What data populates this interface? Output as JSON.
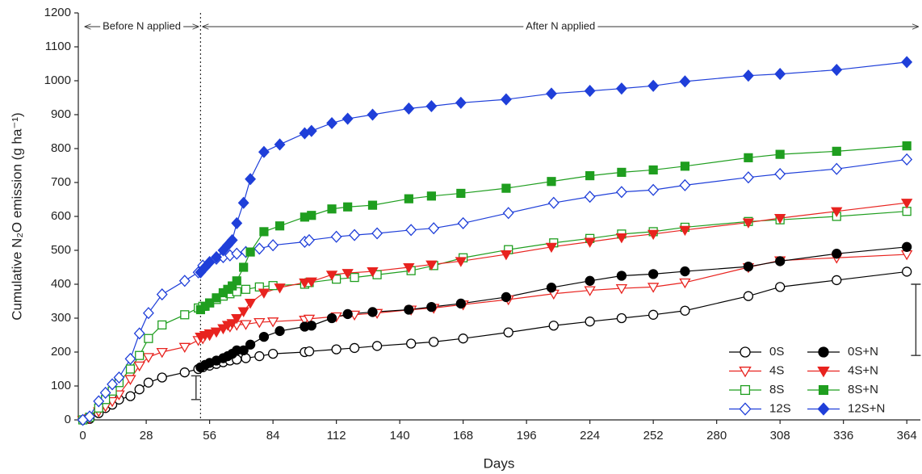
{
  "chart_data": {
    "type": "line",
    "x_label": "Days",
    "y_label": "Cumulative N₂O emission (g ha⁻¹)",
    "xlim": [
      -2,
      370
    ],
    "ylim": [
      0,
      1200
    ],
    "xticks": [
      0,
      28,
      56,
      84,
      112,
      140,
      168,
      196,
      224,
      252,
      280,
      308,
      336,
      364
    ],
    "yticks": [
      0,
      100,
      200,
      300,
      400,
      500,
      600,
      700,
      800,
      900,
      1000,
      1100,
      1200
    ],
    "vline_x": 52,
    "annotations": [
      {
        "text": "Before N applied",
        "from": 0,
        "to": 52
      },
      {
        "text": "After N applied",
        "from": 52,
        "to": 370
      }
    ],
    "error_bars": [
      {
        "x": 50,
        "low": 60,
        "high": 130
      },
      {
        "x": 368,
        "low": 190,
        "high": 400
      }
    ],
    "series": [
      {
        "name": "0S",
        "color": "#000000",
        "marker": "circle",
        "filled": false,
        "x": [
          0,
          3,
          7,
          10,
          13,
          16,
          21,
          25,
          29,
          35,
          45,
          51,
          53,
          56,
          59,
          62,
          65,
          68,
          72,
          78,
          84,
          98,
          100,
          112,
          120,
          130,
          145,
          155,
          168,
          188,
          208,
          224,
          238,
          252,
          266,
          294,
          308,
          333,
          364
        ],
        "values": [
          0,
          3,
          20,
          35,
          45,
          60,
          70,
          90,
          110,
          125,
          140,
          150,
          155,
          160,
          165,
          170,
          175,
          178,
          182,
          188,
          195,
          200,
          202,
          208,
          212,
          218,
          225,
          230,
          240,
          258,
          278,
          290,
          300,
          310,
          322,
          365,
          392,
          412,
          437
        ]
      },
      {
        "name": "4S",
        "color": "#e8231f",
        "marker": "triangle-down",
        "filled": false,
        "x": [
          0,
          3,
          7,
          10,
          13,
          16,
          21,
          25,
          29,
          35,
          45,
          51,
          53,
          56,
          59,
          62,
          65,
          68,
          72,
          78,
          84,
          98,
          100,
          112,
          120,
          130,
          145,
          155,
          168,
          188,
          208,
          224,
          238,
          252,
          266,
          294,
          308,
          333,
          364
        ],
        "values": [
          0,
          5,
          25,
          40,
          55,
          75,
          120,
          160,
          185,
          200,
          215,
          235,
          240,
          250,
          260,
          270,
          275,
          280,
          282,
          288,
          290,
          295,
          298,
          305,
          310,
          315,
          325,
          330,
          340,
          355,
          372,
          382,
          388,
          392,
          405,
          450,
          470,
          478,
          488
        ]
      },
      {
        "name": "8S",
        "color": "#1f9e1f",
        "marker": "square",
        "filled": false,
        "x": [
          0,
          3,
          7,
          10,
          13,
          16,
          21,
          25,
          29,
          35,
          45,
          51,
          53,
          56,
          59,
          62,
          65,
          68,
          72,
          78,
          84,
          98,
          100,
          112,
          120,
          130,
          145,
          155,
          168,
          188,
          208,
          224,
          238,
          252,
          266,
          294,
          308,
          333,
          364
        ],
        "values": [
          0,
          8,
          35,
          60,
          85,
          110,
          150,
          190,
          240,
          280,
          310,
          330,
          335,
          345,
          355,
          365,
          372,
          378,
          385,
          392,
          396,
          400,
          405,
          415,
          420,
          428,
          440,
          455,
          478,
          502,
          522,
          535,
          548,
          555,
          568,
          585,
          590,
          600,
          615
        ]
      },
      {
        "name": "12S",
        "color": "#1f3fd9",
        "marker": "diamond",
        "filled": false,
        "x": [
          0,
          3,
          7,
          10,
          13,
          16,
          21,
          25,
          29,
          35,
          45,
          51,
          53,
          56,
          59,
          62,
          65,
          68,
          72,
          78,
          84,
          98,
          100,
          112,
          120,
          130,
          145,
          155,
          168,
          188,
          208,
          224,
          238,
          252,
          266,
          294,
          308,
          333,
          364
        ],
        "values": [
          0,
          10,
          55,
          80,
          105,
          125,
          180,
          255,
          315,
          370,
          410,
          435,
          455,
          465,
          475,
          480,
          485,
          490,
          495,
          505,
          515,
          525,
          530,
          540,
          545,
          550,
          560,
          565,
          580,
          610,
          640,
          658,
          672,
          678,
          692,
          715,
          725,
          740,
          768
        ]
      },
      {
        "name": "0S+N",
        "color": "#000000",
        "marker": "circle",
        "filled": true,
        "x": [
          52,
          54,
          56,
          59,
          62,
          64,
          66,
          68,
          71,
          74,
          80,
          87,
          98,
          101,
          110,
          117,
          128,
          144,
          154,
          167,
          187,
          207,
          224,
          238,
          252,
          266,
          294,
          308,
          333,
          364
        ],
        "values": [
          155,
          162,
          168,
          175,
          182,
          188,
          195,
          205,
          205,
          222,
          245,
          262,
          275,
          278,
          300,
          312,
          318,
          325,
          333,
          343,
          362,
          390,
          410,
          425,
          430,
          438,
          452,
          468,
          490,
          510
        ]
      },
      {
        "name": "4S+N",
        "color": "#e8231f",
        "marker": "triangle-down",
        "filled": true,
        "x": [
          52,
          54,
          56,
          59,
          62,
          64,
          66,
          68,
          71,
          74,
          80,
          87,
          98,
          101,
          110,
          117,
          128,
          144,
          154,
          167,
          187,
          207,
          224,
          238,
          252,
          266,
          294,
          308,
          333,
          364
        ],
        "values": [
          245,
          250,
          255,
          260,
          270,
          280,
          285,
          300,
          320,
          345,
          375,
          390,
          405,
          408,
          428,
          433,
          438,
          450,
          458,
          468,
          488,
          510,
          525,
          538,
          548,
          560,
          582,
          595,
          615,
          640
        ]
      },
      {
        "name": "8S+N",
        "color": "#1f9e1f",
        "marker": "square",
        "filled": true,
        "x": [
          52,
          54,
          56,
          59,
          62,
          64,
          66,
          68,
          71,
          74,
          80,
          87,
          98,
          101,
          110,
          117,
          128,
          144,
          154,
          167,
          187,
          207,
          224,
          238,
          252,
          266,
          294,
          308,
          333,
          364
        ],
        "values": [
          325,
          335,
          345,
          360,
          375,
          385,
          395,
          410,
          450,
          495,
          555,
          572,
          598,
          603,
          622,
          628,
          633,
          652,
          660,
          668,
          683,
          703,
          720,
          730,
          737,
          748,
          773,
          783,
          792,
          808
        ]
      },
      {
        "name": "12S+N",
        "color": "#1f3fd9",
        "marker": "diamond",
        "filled": true,
        "x": [
          52,
          54,
          56,
          59,
          62,
          64,
          66,
          68,
          71,
          74,
          80,
          87,
          98,
          101,
          110,
          117,
          128,
          144,
          154,
          167,
          187,
          207,
          224,
          238,
          252,
          266,
          294,
          308,
          333,
          364
        ],
        "values": [
          435,
          450,
          465,
          480,
          500,
          515,
          530,
          580,
          640,
          710,
          790,
          812,
          845,
          852,
          875,
          888,
          900,
          918,
          925,
          935,
          945,
          962,
          970,
          977,
          985,
          998,
          1015,
          1020,
          1032,
          1055
        ]
      }
    ]
  }
}
